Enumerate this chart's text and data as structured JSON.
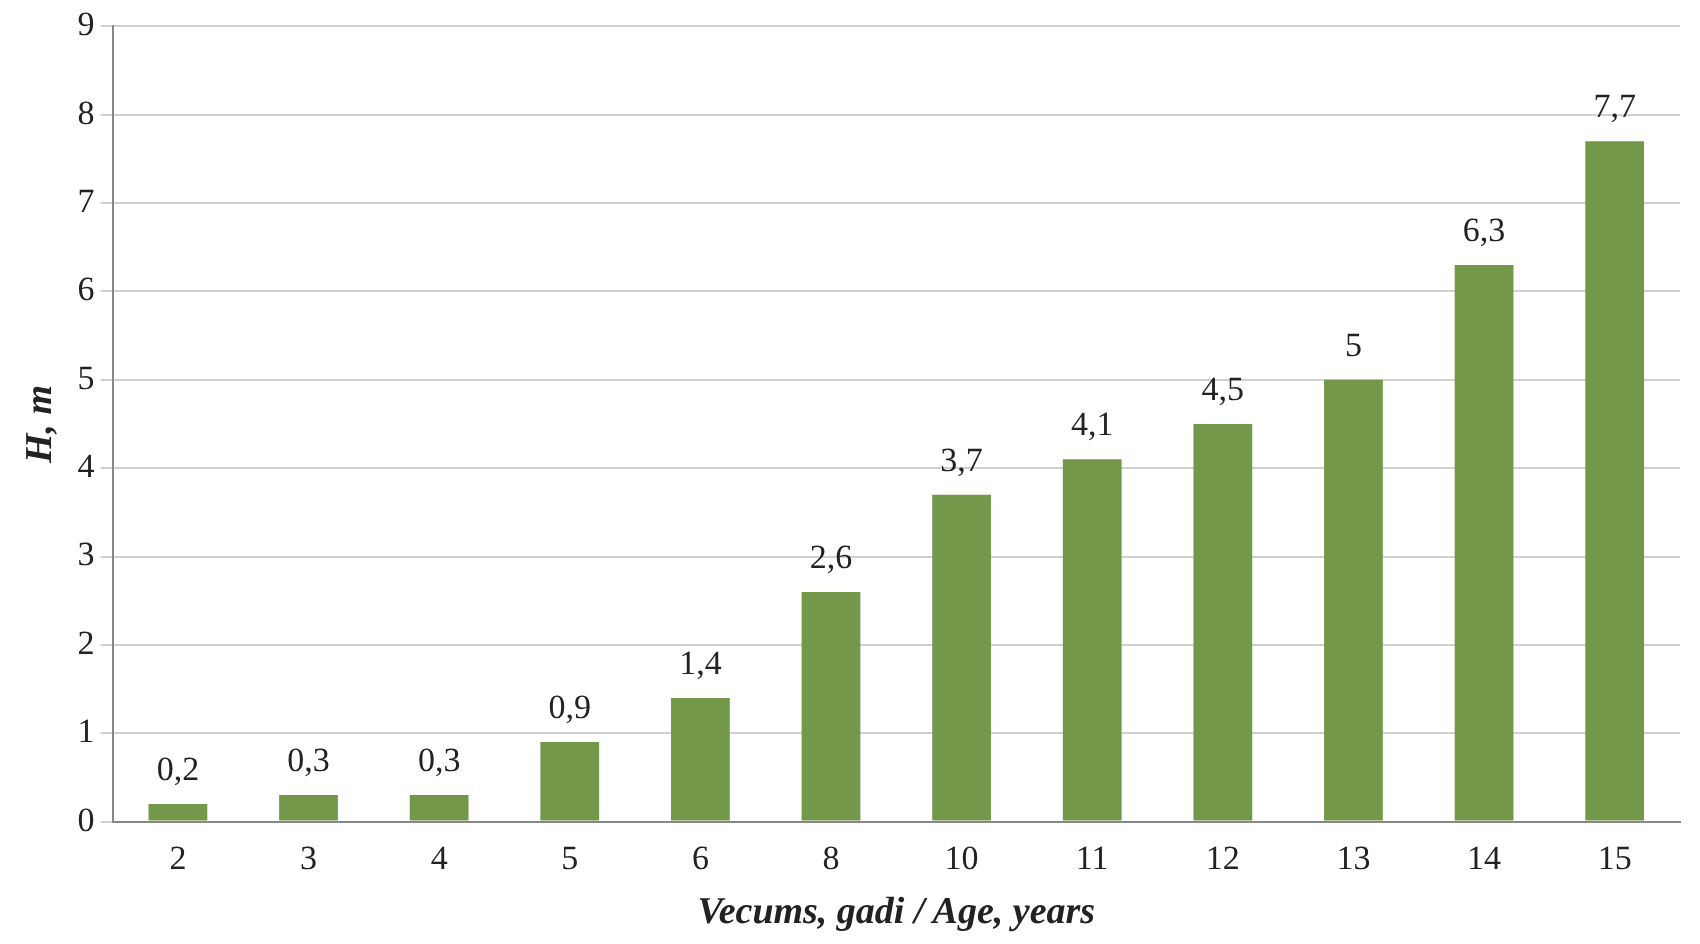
{
  "chart_data": {
    "type": "bar",
    "xlabel": "Vecums, gadi / Age, years",
    "ylabel": "H, m",
    "categories": [
      "2",
      "3",
      "4",
      "5",
      "6",
      "8",
      "10",
      "11",
      "12",
      "13",
      "14",
      "15"
    ],
    "values": [
      0.2,
      0.3,
      0.3,
      0.9,
      1.4,
      2.6,
      3.7,
      4.1,
      4.5,
      5,
      6.3,
      7.7
    ],
    "value_labels": [
      "0,2",
      "0,3",
      "0,3",
      "0,9",
      "1,4",
      "2,6",
      "3,7",
      "4,1",
      "4,5",
      "5",
      "6,3",
      "7,7"
    ],
    "color": "#73984a",
    "ylim": [
      0,
      9
    ],
    "yticks": [
      0,
      1,
      2,
      3,
      4,
      5,
      6,
      7,
      8,
      9
    ],
    "grid": "y",
    "legend": false
  }
}
